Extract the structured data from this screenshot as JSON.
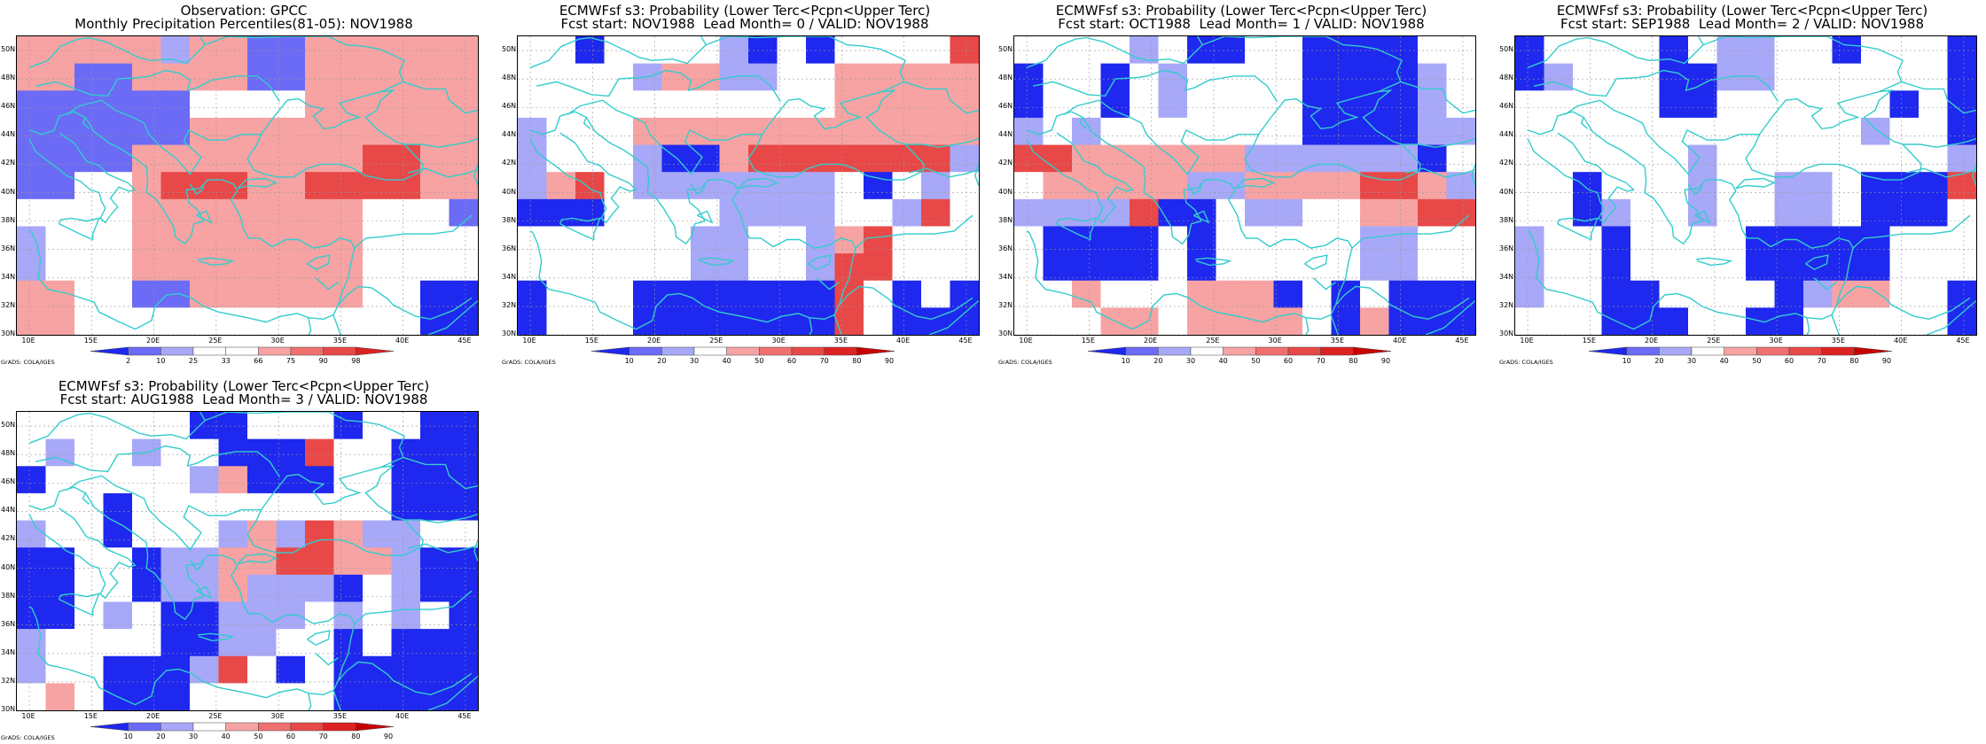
{
  "credit": "GrADS: COLA/IGES",
  "lat_labels": [
    "50N",
    "48N",
    "46N",
    "44N",
    "42N",
    "40N",
    "38N",
    "36N",
    "34N",
    "32N",
    "30N"
  ],
  "lon_labels": [
    "10E",
    "15E",
    "20E",
    "25E",
    "30E",
    "35E",
    "40E",
    "45E"
  ],
  "colors": {
    "blue3": "#1e28ee",
    "blue2": "#6b6bf5",
    "blue1": "#a8a8f8",
    "white": "#ffffff",
    "red1": "#f7a3a3",
    "red2": "#f07070",
    "red3": "#e84848",
    "red4": "#dd2222",
    "coast": "#33cccc"
  },
  "scales": {
    "percentile": {
      "labels": [
        "2",
        "10",
        "25",
        "33",
        "66",
        "75",
        "90",
        "98"
      ],
      "colors": [
        "#1e28ee",
        "#6b6bf5",
        "#a8a8f8",
        "#ffffff",
        "#ffffff",
        "#f7a3a3",
        "#f07070",
        "#e84848",
        "#dd2222"
      ]
    },
    "probability": {
      "labels": [
        "10",
        "20",
        "30",
        "40",
        "50",
        "60",
        "70",
        "80",
        "90"
      ],
      "colors": [
        "#1e28ee",
        "#6b6bf5",
        "#a8a8f8",
        "#ffffff",
        "#f7a3a3",
        "#f07070",
        "#e84848",
        "#dd2222",
        "#c80000"
      ]
    }
  },
  "panels": [
    {
      "title_line1": "Observation: GPCC",
      "title_line2": "Monthly Precipitation Percentiles(81-05): NOV1988",
      "scale": "percentile",
      "grid": [
        "rrrrrprrbbrrrrrr",
        "rrbbrrrrbbrrrrrr",
        "bbbbbbwwwwrrrrrr",
        "bbbbbbrrrrrrrrrr",
        "bbbbrrrrrrrrRRrr",
        "bbwwrRRRrrRRRRrr",
        "wwwwrrrrrrrrwwwb",
        "pwwwrrrrrrrrwwww",
        "pwwwrrrrrrrrwwww",
        "rrwwbbrrrrrrwwBB",
        "rrwwwwwwwwwwwwBB"
      ]
    },
    {
      "title_line1": "ECMWFsf s3: Probability (Lower Terc<Pcpn<Upper Terc)",
      "title_line2": "Fcst start: NOV1988  Lead Month= 0 / VALID: NOV1988",
      "scale": "probability",
      "grid": [
        "wwBwwwwpBwBwwwwR",
        "wwwwprrppwwrrrrr",
        "wwwwwwwwwwwrrrrr",
        "pwwwrrrrrrrrrrrr",
        "pwwwpBBrRRRRRRRp",
        "prRwpppppppwBwpw",
        "BBBwwwwppppwwpRw",
        "wwwwwwppwwprRwww",
        "wwwwwwppwwpRRwww",
        "BwwwBBBBBBBRwBwB",
        "BwwwBBBBBBBRwBBB"
      ]
    },
    {
      "title_line1": "ECMWFsf s3: Probability (Lower Terc<Pcpn<Upper Terc)",
      "title_line2": "Fcst start: OCT1988  Lead Month= 1 / VALID: NOV1988",
      "scale": "probability",
      "grid": [
        "wwwwpwBBwwBBBBww",
        "BwwBwpwwwwBBBBpw",
        "BwwBwpwwwwBBBBpw",
        "pwpwwwwwwwBBBBpp",
        "RRrrrrrrppppppBw",
        "wrrrrrpprrrrRRrp",
        "ppppRBBwppwwrrRR",
        "wBBBBwBwwwwwppww",
        "wBBBBwBwwwwwppww",
        "wwrwwwrrrBwBwBBB",
        "wwwrrwrrrrwBrBBB"
      ]
    },
    {
      "title_line1": "ECMWFsf s3: Probability (Lower Terc<Pcpn<Upper Terc)",
      "title_line2": "Fcst start: SEP1988  Lead Month= 2 / VALID: NOV1988",
      "scale": "probability",
      "grid": [
        "BwwwwBwppwwBwwwB",
        "BpwwwBBppwwwwwwB",
        "wwwwwBBwwwwwwBwB",
        "wwwwwwwwwwwwpwwB",
        "wwwwwwpwwwwwwwwp",
        "wwBwwwpwwppwBBBR",
        "wwBpwwpwwppwBBBw",
        "pwwBwwwwBBBBBwww",
        "pwwBwwwwBBBBBwww",
        "pwwBBwwwwBprrwwB",
        "wwwBBBwwBBwwwwwB"
      ]
    },
    {
      "title_line1": "ECMWFsf s3: Probability (Lower Terc<Pcpn<Upper Terc)",
      "title_line2": "Fcst start: AUG1988  Lead Month= 3 / VALID: NOV1988",
      "scale": "probability",
      "grid": [
        "wwwwwwBBwwwBwwBB",
        "wpwwpwwBBBRwwBBB",
        "BwwwwwprBBBwwBBB",
        "wwwBwwwwwwwwwBBB",
        "pwwBwwwprpRrppww",
        "BBwwBpprrRRrrpBB",
        "BBwwBpprpppBwpBB",
        "BBwpwBBpppwpwpwB",
        "pwwwwBBppwwBwBBB",
        "pwwBBBpRwBwBBBBB",
        "wrwBBBwwwwwBBBBB"
      ]
    }
  ]
}
